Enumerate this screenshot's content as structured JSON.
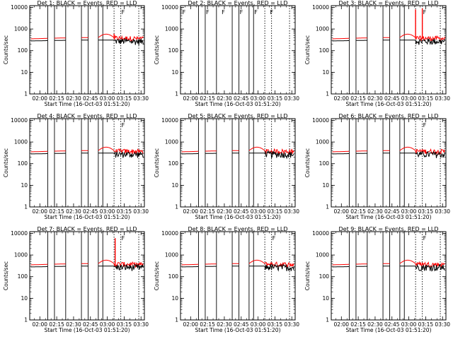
{
  "chart_data": [
    {
      "type": "line",
      "title": "Det 1: BLACK = Events, RED = LLD",
      "xlabel": "Start Time (16-Oct-03 01:51:20)",
      "ylabel": "Counts/sec",
      "yscale": "log",
      "ylim": [
        1,
        12000
      ],
      "xlim": [
        "01:51",
        "03:33"
      ],
      "x_tick_labels": [
        "02:00",
        "02:15",
        "02:30",
        "02:45",
        "03:00",
        "03:15",
        "03:30"
      ],
      "y_tick_labels": [
        "1",
        "10",
        "100",
        "1000",
        "10000"
      ],
      "black_series_level": 280,
      "red_series_level": 350,
      "red_spikes": [
        {
          "x": "03:06",
          "y": 600
        }
      ],
      "markers": [
        "F"
      ]
    },
    {
      "type": "line",
      "title": "Det 2: BLACK = Events, RED = LLD",
      "xlabel": "Start Time (16-Oct-03 01:51:20)",
      "ylabel": "Counts/sec",
      "yscale": "log",
      "ylim": [
        1,
        12000
      ],
      "xlim": [
        "01:51",
        "03:33"
      ],
      "x_tick_labels": [
        "02:00",
        "02:15",
        "02:30",
        "02:45",
        "03:00",
        "03:15",
        "03:30"
      ],
      "y_tick_labels": [
        "1",
        "10",
        "100",
        "1000",
        "10000"
      ],
      "black_series_level": null,
      "red_series_level": null,
      "red_spikes": [],
      "markers": [
        "F",
        "F",
        "F",
        "F",
        "F",
        "F"
      ]
    },
    {
      "type": "line",
      "title": "Det 3: BLACK = Events, RED = LLD",
      "xlabel": "Start Time (16-Oct-03 01:51:20)",
      "ylabel": "Counts/sec",
      "yscale": "log",
      "ylim": [
        1,
        12000
      ],
      "xlim": [
        "01:51",
        "03:33"
      ],
      "x_tick_labels": [
        "02:00",
        "02:15",
        "02:30",
        "02:45",
        "03:00",
        "03:15",
        "03:30"
      ],
      "y_tick_labels": [
        "1",
        "10",
        "100",
        "1000",
        "10000"
      ],
      "black_series_level": 280,
      "red_series_level": 350,
      "red_spikes": [
        {
          "x": "03:06",
          "y": 8000
        },
        {
          "x": "03:12",
          "y": 9000
        }
      ],
      "markers": [
        "F"
      ]
    },
    {
      "type": "line",
      "title": "Det 4: BLACK = Events, RED = LLD",
      "xlabel": "Start Time (16-Oct-03 01:51:20)",
      "ylabel": "Counts/sec",
      "yscale": "log",
      "ylim": [
        1,
        12000
      ],
      "xlim": [
        "01:51",
        "03:33"
      ],
      "x_tick_labels": [
        "02:00",
        "02:15",
        "02:30",
        "02:45",
        "03:00",
        "03:15",
        "03:30"
      ],
      "y_tick_labels": [
        "1",
        "10",
        "100",
        "1000",
        "10000"
      ],
      "black_series_level": 280,
      "red_series_level": 350,
      "red_spikes": [],
      "markers": [
        "F"
      ]
    },
    {
      "type": "line",
      "title": "Det 5: BLACK = Events, RED = LLD",
      "xlabel": "Start Time (16-Oct-03 01:51:20)",
      "ylabel": "Counts/sec",
      "yscale": "log",
      "ylim": [
        1,
        12000
      ],
      "xlim": [
        "01:51",
        "03:33"
      ],
      "x_tick_labels": [
        "02:00",
        "02:15",
        "02:30",
        "02:45",
        "03:00",
        "03:15",
        "03:30"
      ],
      "y_tick_labels": [
        "1",
        "10",
        "100",
        "1000",
        "10000"
      ],
      "black_series_level": 280,
      "red_series_level": 350,
      "red_spikes": [],
      "markers": []
    },
    {
      "type": "line",
      "title": "Det 6: BLACK = Events, RED = LLD",
      "xlabel": "Start Time (16-Oct-03 01:51:20)",
      "ylabel": "Counts/sec",
      "yscale": "log",
      "ylim": [
        1,
        12000
      ],
      "xlim": [
        "01:51",
        "03:33"
      ],
      "x_tick_labels": [
        "02:00",
        "02:15",
        "02:30",
        "02:45",
        "03:00",
        "03:15",
        "03:30"
      ],
      "y_tick_labels": [
        "1",
        "10",
        "100",
        "1000",
        "10000"
      ],
      "black_series_level": 280,
      "red_series_level": 350,
      "red_spikes": [],
      "markers": [
        "F"
      ]
    },
    {
      "type": "line",
      "title": "Det 7: BLACK = Events, RED = LLD",
      "xlabel": "Start Time (16-Oct-03 01:51:20)",
      "ylabel": "Counts/sec",
      "yscale": "log",
      "ylim": [
        1,
        12000
      ],
      "xlim": [
        "01:51",
        "03:33"
      ],
      "x_tick_labels": [
        "02:00",
        "02:15",
        "02:30",
        "02:45",
        "03:00",
        "03:15",
        "03:30"
      ],
      "y_tick_labels": [
        "1",
        "10",
        "100",
        "1000",
        "10000"
      ],
      "black_series_level": 280,
      "red_series_level": 350,
      "red_spikes": [
        {
          "x": "03:07",
          "y": 6000
        }
      ],
      "markers": [
        "F"
      ]
    },
    {
      "type": "line",
      "title": "Det 8: BLACK = Events, RED = LLD",
      "xlabel": "Start Time (16-Oct-03 01:51:20)",
      "ylabel": "Counts/sec",
      "yscale": "log",
      "ylim": [
        1,
        12000
      ],
      "xlim": [
        "01:51",
        "03:33"
      ],
      "x_tick_labels": [
        "02:00",
        "02:15",
        "02:30",
        "02:45",
        "03:00",
        "03:15",
        "03:30"
      ],
      "y_tick_labels": [
        "1",
        "10",
        "100",
        "1000",
        "10000"
      ],
      "black_series_level": 280,
      "red_series_level": 350,
      "red_spikes": [],
      "markers": [
        "F"
      ]
    },
    {
      "type": "line",
      "title": "Det 9: BLACK = Events, RED = LLD",
      "xlabel": "Start Time (16-Oct-03 01:51:20)",
      "ylabel": "Counts/sec",
      "yscale": "log",
      "ylim": [
        1,
        12000
      ],
      "xlim": [
        "01:51",
        "03:33"
      ],
      "x_tick_labels": [
        "02:00",
        "02:15",
        "02:30",
        "02:45",
        "03:00",
        "03:15",
        "03:30"
      ],
      "y_tick_labels": [
        "1",
        "10",
        "100",
        "1000",
        "10000"
      ],
      "black_series_level": 280,
      "red_series_level": 350,
      "red_spikes": [],
      "markers": [
        "F"
      ]
    }
  ],
  "shared": {
    "solid_boundaries": [
      "02:07",
      "02:13",
      "02:23",
      "02:37",
      "02:43",
      "02:52",
      "02:56"
    ],
    "dotted_boundaries": [
      "03:06",
      "03:12",
      "03:28"
    ],
    "colors": {
      "events": "#000000",
      "lld": "#ff0000",
      "background": "#ffffff"
    }
  }
}
